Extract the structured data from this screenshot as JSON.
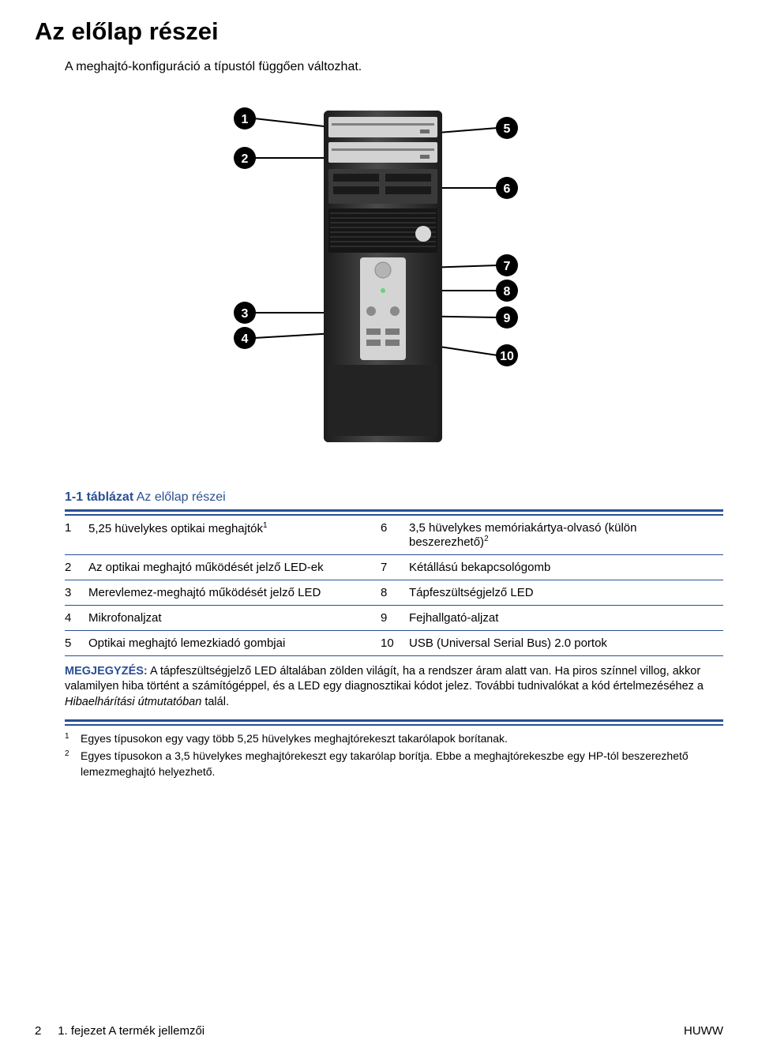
{
  "colors": {
    "title": "#294f94",
    "rule": "#294f94",
    "note_label": "#294f94",
    "text": "#000000",
    "bg": "#ffffff"
  },
  "title": "Az előlap részei",
  "subtitle": "A meghajtó-konfiguráció a típustól függően változhat.",
  "figure": {
    "callouts": [
      "1",
      "2",
      "3",
      "4",
      "5",
      "6",
      "7",
      "8",
      "9",
      "10"
    ],
    "callout_bg": "#000000",
    "callout_fg": "#ffffff",
    "tower_fill": "#2e2e2e",
    "tower_highlight": "#6a6a6a",
    "drive_fill": "#cfcfcf"
  },
  "table": {
    "prefix": "1-1 táblázat",
    "title": "Az előlap részei",
    "rows": [
      {
        "ln": "1",
        "ld": "5,25 hüvelykes optikai meghajtók",
        "lsup": "1",
        "rn": "6",
        "rd": "3,5 hüvelykes memóriakártya-olvasó (külön beszerezhető)",
        "rsup": "2"
      },
      {
        "ln": "2",
        "ld": "Az optikai meghajtó működését jelző LED-ek",
        "lsup": "",
        "rn": "7",
        "rd": "Kétállású bekapcsológomb",
        "rsup": ""
      },
      {
        "ln": "3",
        "ld": "Merevlemez-meghajtó működését jelző LED",
        "lsup": "",
        "rn": "8",
        "rd": "Tápfeszültségjelző LED",
        "rsup": ""
      },
      {
        "ln": "4",
        "ld": "Mikrofonaljzat",
        "lsup": "",
        "rn": "9",
        "rd": "Fejhallgató-aljzat",
        "rsup": ""
      },
      {
        "ln": "5",
        "ld": "Optikai meghajtó lemezkiadó gombjai",
        "lsup": "",
        "rn": "10",
        "rd": "USB (Universal Serial Bus) 2.0 portok",
        "rsup": ""
      }
    ]
  },
  "note": {
    "label": "MEGJEGYZÉS:",
    "text1": "A tápfeszültségjelző LED általában zölden világít, ha a rendszer áram alatt van. Ha piros színnel villog, akkor valamilyen hiba történt a számítógéppel, és a LED egy diagnosztikai kódot jelez. További tudnivalókat a kód értelmezéséhez a ",
    "text1_italic": "Hibaelhárítási útmutatóban",
    "text1_tail": " talál."
  },
  "footnotes": [
    {
      "n": "1",
      "t": "Egyes típusokon egy vagy több 5,25 hüvelykes meghajtórekeszt takarólapok borítanak."
    },
    {
      "n": "2",
      "t": "Egyes típusokon a 3,5 hüvelykes meghajtórekeszt egy takarólap borítja. Ebbe a meghajtórekeszbe egy HP-tól beszerezhető lemezmeghajtó helyezhető."
    }
  ],
  "footer": {
    "page": "2",
    "chapter": "1. fejezet   A termék jellemzői",
    "right": "HUWW"
  }
}
